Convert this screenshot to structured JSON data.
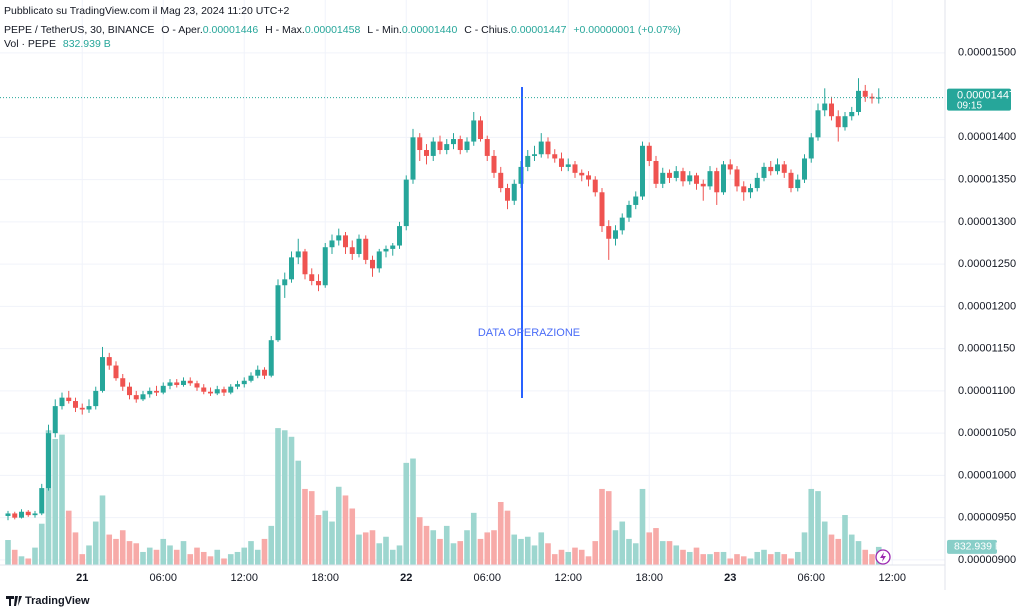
{
  "header": {
    "published": "Pubblicato su TradingView.com il Mag 23, 2024 11:20 UTC+2",
    "symbol": "PEPE / TetherUS, 30, BINANCE",
    "ohlc": [
      {
        "label": "O - Aper.",
        "value": "0.00001446"
      },
      {
        "label": "H - Max.",
        "value": "0.00001458"
      },
      {
        "label": "L - Min.",
        "value": "0.00001440"
      },
      {
        "label": "C - Chius.",
        "value": "0.00001447"
      }
    ],
    "change": "+0.00000001 (+0.07%)",
    "volume_title": "Vol · PEPE",
    "volume_label": "832.939 B",
    "countdown": "09:15",
    "annotation": "DATA OPERAZIONE",
    "brand": "TradingView"
  },
  "chart_data": {
    "type": "candlestick",
    "up_color": "#26a69a",
    "down_color": "#ef5350",
    "volume_up_color": "#9dd6cf",
    "volume_down_color": "#f7aaa8",
    "grid": true,
    "ylim": [
      8.94e-06,
      1.5625e-05
    ],
    "yticks": [
      {
        "value": 1.5e-05,
        "label": "0.00001500"
      },
      {
        "value": 1.4e-05,
        "label": "0.00001400"
      },
      {
        "value": 1.35e-05,
        "label": "0.00001350"
      },
      {
        "value": 1.3e-05,
        "label": "0.00001300"
      },
      {
        "value": 1.25e-05,
        "label": "0.00001250"
      },
      {
        "value": 1.2e-05,
        "label": "0.00001200"
      },
      {
        "value": 1.15e-05,
        "label": "0.00001150"
      },
      {
        "value": 1.1e-05,
        "label": "0.00001100"
      },
      {
        "value": 1.05e-05,
        "label": "0.00001050"
      },
      {
        "value": 1e-05,
        "label": "0.00001000"
      },
      {
        "value": 9.5e-06,
        "label": "0.00000950"
      },
      {
        "value": 9e-06,
        "label": "0.00000900"
      }
    ],
    "xlim": [
      -1.185,
      138.815
    ],
    "xticks": [
      {
        "value": 11,
        "label": "21"
      },
      {
        "value": 23,
        "label": "06:00"
      },
      {
        "value": 35,
        "label": "12:00"
      },
      {
        "value": 47,
        "label": "18:00"
      },
      {
        "value": 59,
        "label": "22"
      },
      {
        "value": 71,
        "label": "06:00"
      },
      {
        "value": 83,
        "label": "12:00"
      },
      {
        "value": 95,
        "label": "18:00"
      },
      {
        "value": 107,
        "label": "23"
      },
      {
        "value": 119,
        "label": "06:00"
      },
      {
        "value": 131,
        "label": "12:00"
      }
    ],
    "volume_lim": [
      0,
      26000
    ],
    "candles": [
      [
        9.52e-06,
        9.58e-06,
        9.47e-06,
        9.55e-06
      ],
      [
        9.55e-06,
        9.57e-06,
        9.48e-06,
        9.5e-06
      ],
      [
        9.5e-06,
        9.6e-06,
        9.49e-06,
        9.57e-06
      ],
      [
        9.57e-06,
        9.59e-06,
        9.51e-06,
        9.53e-06
      ],
      [
        9.53e-06,
        9.58e-06,
        9.5e-06,
        9.55e-06
      ],
      [
        9.55e-06,
        9.9e-06,
        9.53e-06,
        9.85e-06
      ],
      [
        9.85e-06,
        1.06e-05,
        9.82e-06,
        1.05e-05
      ],
      [
        1.05e-05,
        1.09e-05,
        1.045e-05,
        1.082e-05
      ],
      [
        1.082e-05,
        1.098e-05,
        1.078e-05,
        1.092e-05
      ],
      [
        1.092e-05,
        1.1e-05,
        1.085e-05,
        1.088e-05
      ],
      [
        1.088e-05,
        1.092e-05,
        1.075e-05,
        1.08e-05
      ],
      [
        1.08e-05,
        1.085e-05,
        1.072e-05,
        1.078e-05
      ],
      [
        1.078e-05,
        1.09e-05,
        1.074e-05,
        1.082e-05
      ],
      [
        1.082e-05,
        1.105e-05,
        1.078e-05,
        1.1e-05
      ],
      [
        1.1e-05,
        1.152e-05,
        1.098e-05,
        1.14e-05
      ],
      [
        1.14e-05,
        1.145e-05,
        1.125e-05,
        1.13e-05
      ],
      [
        1.13e-05,
        1.135e-05,
        1.112e-05,
        1.115e-05
      ],
      [
        1.115e-05,
        1.12e-05,
        1.1e-05,
        1.105e-05
      ],
      [
        1.105e-05,
        1.11e-05,
        1.09e-05,
        1.095e-05
      ],
      [
        1.095e-05,
        1.1e-05,
        1.086e-05,
        1.09e-05
      ],
      [
        1.09e-05,
        1.1e-05,
        1.088e-05,
        1.096e-05
      ],
      [
        1.096e-05,
        1.104e-05,
        1.092e-05,
        1.1e-05
      ],
      [
        1.1e-05,
        1.106e-05,
        1.094e-05,
        1.098e-05
      ],
      [
        1.098e-05,
        1.11e-05,
        1.096e-05,
        1.106e-05
      ],
      [
        1.106e-05,
        1.114e-05,
        1.102e-05,
        1.11e-05
      ],
      [
        1.11e-05,
        1.114e-05,
        1.104e-05,
        1.107e-05
      ],
      [
        1.107e-05,
        1.116e-05,
        1.105e-05,
        1.112e-05
      ],
      [
        1.112e-05,
        1.116e-05,
        1.106e-05,
        1.109e-05
      ],
      [
        1.109e-05,
        1.112e-05,
        1.1e-05,
        1.104e-05
      ],
      [
        1.104e-05,
        1.108e-05,
        1.096e-05,
        1.099e-05
      ],
      [
        1.099e-05,
        1.104e-05,
        1.094e-05,
        1.097e-05
      ],
      [
        1.097e-05,
        1.106e-05,
        1.095e-05,
        1.102e-05
      ],
      [
        1.102e-05,
        1.105e-05,
        1.094e-05,
        1.098e-05
      ],
      [
        1.098e-05,
        1.108e-05,
        1.096e-05,
        1.105e-05
      ],
      [
        1.105e-05,
        1.112e-05,
        1.102e-05,
        1.108e-05
      ],
      [
        1.108e-05,
        1.116e-05,
        1.104e-05,
        1.112e-05
      ],
      [
        1.112e-05,
        1.122e-05,
        1.11e-05,
        1.118e-05
      ],
      [
        1.118e-05,
        1.13e-05,
        1.115e-05,
        1.125e-05
      ],
      [
        1.125e-05,
        1.128e-05,
        1.114e-05,
        1.118e-05
      ],
      [
        1.118e-05,
        1.165e-05,
        1.116e-05,
        1.16e-05
      ],
      [
        1.16e-05,
        1.232e-05,
        1.158e-05,
        1.225e-05
      ],
      [
        1.225e-05,
        1.24e-05,
        1.21e-05,
        1.232e-05
      ],
      [
        1.232e-05,
        1.265e-05,
        1.228e-05,
        1.258e-05
      ],
      [
        1.258e-05,
        1.28e-05,
        1.25e-05,
        1.265e-05
      ],
      [
        1.265e-05,
        1.268e-05,
        1.232e-05,
        1.238e-05
      ],
      [
        1.238e-05,
        1.245e-05,
        1.225e-05,
        1.23e-05
      ],
      [
        1.23e-05,
        1.238e-05,
        1.218e-05,
        1.225e-05
      ],
      [
        1.225e-05,
        1.275e-05,
        1.222e-05,
        1.27e-05
      ],
      [
        1.27e-05,
        1.285e-05,
        1.262e-05,
        1.278e-05
      ],
      [
        1.278e-05,
        1.292e-05,
        1.272e-05,
        1.284e-05
      ],
      [
        1.284e-05,
        1.288e-05,
        1.262e-05,
        1.27e-05
      ],
      [
        1.27e-05,
        1.278e-05,
        1.255e-05,
        1.262e-05
      ],
      [
        1.262e-05,
        1.285e-05,
        1.258e-05,
        1.28e-05
      ],
      [
        1.28e-05,
        1.284e-05,
        1.25e-05,
        1.255e-05
      ],
      [
        1.255e-05,
        1.26e-05,
        1.235e-05,
        1.245e-05
      ],
      [
        1.245e-05,
        1.268e-05,
        1.24e-05,
        1.265e-05
      ],
      [
        1.265e-05,
        1.272e-05,
        1.258e-05,
        1.268e-05
      ],
      [
        1.268e-05,
        1.275e-05,
        1.26e-05,
        1.272e-05
      ],
      [
        1.272e-05,
        1.3e-05,
        1.268e-05,
        1.295e-05
      ],
      [
        1.295e-05,
        1.355e-05,
        1.29e-05,
        1.35e-05
      ],
      [
        1.35e-05,
        1.41e-05,
        1.345e-05,
        1.4e-05
      ],
      [
        1.4e-05,
        1.405e-05,
        1.372e-05,
        1.385e-05
      ],
      [
        1.385e-05,
        1.392e-05,
        1.368e-05,
        1.378e-05
      ],
      [
        1.378e-05,
        1.4e-05,
        1.372e-05,
        1.395e-05
      ],
      [
        1.395e-05,
        1.402e-05,
        1.38e-05,
        1.385e-05
      ],
      [
        1.385e-05,
        1.398e-05,
        1.38e-05,
        1.392e-05
      ],
      [
        1.392e-05,
        1.405e-05,
        1.386e-05,
        1.398e-05
      ],
      [
        1.398e-05,
        1.402e-05,
        1.38e-05,
        1.385e-05
      ],
      [
        1.385e-05,
        1.4e-05,
        1.382e-05,
        1.395e-05
      ],
      [
        1.395e-05,
        1.43e-05,
        1.39e-05,
        1.42e-05
      ],
      [
        1.42e-05,
        1.425e-05,
        1.395e-05,
        1.398e-05
      ],
      [
        1.398e-05,
        1.402e-05,
        1.372e-05,
        1.378e-05
      ],
      [
        1.378e-05,
        1.385e-05,
        1.352e-05,
        1.358e-05
      ],
      [
        1.358e-05,
        1.365e-05,
        1.335e-05,
        1.34e-05
      ],
      [
        1.34e-05,
        1.345e-05,
        1.315e-05,
        1.325e-05
      ],
      [
        1.325e-05,
        1.35e-05,
        1.32e-05,
        1.345e-05
      ],
      [
        1.345e-05,
        1.372e-05,
        1.34e-05,
        1.365e-05
      ],
      [
        1.365e-05,
        1.385e-05,
        1.36e-05,
        1.378e-05
      ],
      [
        1.378e-05,
        1.39e-05,
        1.372e-05,
        1.38e-05
      ],
      [
        1.38e-05,
        1.405e-05,
        1.376e-05,
        1.395e-05
      ],
      [
        1.395e-05,
        1.4e-05,
        1.375e-05,
        1.38e-05
      ],
      [
        1.38e-05,
        1.386e-05,
        1.37e-05,
        1.375e-05
      ],
      [
        1.375e-05,
        1.382e-05,
        1.36e-05,
        1.365e-05
      ],
      [
        1.365e-05,
        1.375e-05,
        1.36e-05,
        1.368e-05
      ],
      [
        1.368e-05,
        1.372e-05,
        1.352e-05,
        1.358e-05
      ],
      [
        1.358e-05,
        1.362e-05,
        1.348e-05,
        1.355e-05
      ],
      [
        1.355e-05,
        1.36e-05,
        1.342e-05,
        1.35e-05
      ],
      [
        1.35e-05,
        1.354e-05,
        1.33e-05,
        1.335e-05
      ],
      [
        1.335e-05,
        1.34e-05,
        1.288e-05,
        1.295e-05
      ],
      [
        1.295e-05,
        1.302e-05,
        1.255e-05,
        1.28e-05
      ],
      [
        1.28e-05,
        1.296e-05,
        1.272e-05,
        1.29e-05
      ],
      [
        1.29e-05,
        1.31e-05,
        1.285e-05,
        1.305e-05
      ],
      [
        1.305e-05,
        1.325e-05,
        1.3e-05,
        1.32e-05
      ],
      [
        1.32e-05,
        1.336e-05,
        1.315e-05,
        1.33e-05
      ],
      [
        1.33e-05,
        1.395e-05,
        1.326e-05,
        1.39e-05
      ],
      [
        1.39e-05,
        1.394e-05,
        1.366e-05,
        1.372e-05
      ],
      [
        1.372e-05,
        1.378e-05,
        1.34e-05,
        1.345e-05
      ],
      [
        1.345e-05,
        1.364e-05,
        1.34e-05,
        1.358e-05
      ],
      [
        1.358e-05,
        1.362e-05,
        1.346e-05,
        1.352e-05
      ],
      [
        1.352e-05,
        1.366e-05,
        1.348e-05,
        1.36e-05
      ],
      [
        1.36e-05,
        1.364e-05,
        1.342e-05,
        1.348e-05
      ],
      [
        1.348e-05,
        1.36e-05,
        1.344e-05,
        1.355e-05
      ],
      [
        1.355e-05,
        1.358e-05,
        1.338e-05,
        1.345e-05
      ],
      [
        1.345e-05,
        1.35e-05,
        1.325e-05,
        1.342e-05
      ],
      [
        1.342e-05,
        1.366e-05,
        1.338e-05,
        1.36e-05
      ],
      [
        1.36e-05,
        1.364e-05,
        1.32e-05,
        1.335e-05
      ],
      [
        1.335e-05,
        1.372e-05,
        1.332e-05,
        1.368e-05
      ],
      [
        1.368e-05,
        1.374e-05,
        1.356e-05,
        1.362e-05
      ],
      [
        1.362e-05,
        1.366e-05,
        1.336e-05,
        1.342e-05
      ],
      [
        1.342e-05,
        1.348e-05,
        1.325e-05,
        1.335e-05
      ],
      [
        1.335e-05,
        1.345e-05,
        1.328e-05,
        1.34e-05
      ],
      [
        1.34e-05,
        1.358e-05,
        1.336e-05,
        1.352e-05
      ],
      [
        1.352e-05,
        1.37e-05,
        1.348e-05,
        1.365e-05
      ],
      [
        1.365e-05,
        1.372e-05,
        1.355e-05,
        1.36e-05
      ],
      [
        1.36e-05,
        1.375e-05,
        1.356e-05,
        1.368e-05
      ],
      [
        1.368e-05,
        1.372e-05,
        1.352e-05,
        1.358e-05
      ],
      [
        1.358e-05,
        1.362e-05,
        1.335e-05,
        1.34e-05
      ],
      [
        1.34e-05,
        1.356e-05,
        1.336e-05,
        1.35e-05
      ],
      [
        1.35e-05,
        1.38e-05,
        1.346e-05,
        1.375e-05
      ],
      [
        1.375e-05,
        1.405e-05,
        1.37e-05,
        1.4e-05
      ],
      [
        1.4e-05,
        1.44e-05,
        1.396e-05,
        1.432e-05
      ],
      [
        1.432e-05,
        1.458e-05,
        1.425e-05,
        1.44e-05
      ],
      [
        1.44e-05,
        1.448e-05,
        1.42e-05,
        1.425e-05
      ],
      [
        1.425e-05,
        1.432e-05,
        1.395e-05,
        1.412e-05
      ],
      [
        1.412e-05,
        1.43e-05,
        1.408e-05,
        1.425e-05
      ],
      [
        1.425e-05,
        1.436e-05,
        1.42e-05,
        1.43e-05
      ],
      [
        1.43e-05,
        1.47e-05,
        1.426e-05,
        1.455e-05
      ],
      [
        1.455e-05,
        1.462e-05,
        1.442e-05,
        1.448e-05
      ],
      [
        1.448e-05,
        1.452e-05,
        1.44e-05,
        1.446e-05
      ],
      [
        1.446e-05,
        1.458e-05,
        1.44e-05,
        1.447e-05
      ]
    ],
    "volumes": [
      1150,
      700,
      400,
      300,
      800,
      1900,
      6200,
      5800,
      6000,
      2500,
      1500,
      500,
      900,
      2000,
      3200,
      1400,
      1200,
      1600,
      1100,
      1000,
      600,
      800,
      700,
      1200,
      900,
      700,
      1100,
      500,
      800,
      600,
      400,
      700,
      300,
      500,
      600,
      800,
      1100,
      700,
      1200,
      1800,
      6300,
      6200,
      5900,
      4800,
      3500,
      3400,
      2300,
      2500,
      2000,
      3600,
      3200,
      2600,
      1400,
      1500,
      1600,
      1000,
      1300,
      700,
      900,
      4700,
      4900,
      2200,
      1800,
      1600,
      1200,
      1800,
      1000,
      1100,
      1600,
      2400,
      1200,
      1500,
      1600,
      2900,
      2500,
      1400,
      1200,
      1300,
      900,
      1500,
      1000,
      500,
      700,
      600,
      800,
      700,
      400,
      1100,
      3500,
      3400,
      1600,
      2000,
      1200,
      1000,
      3500,
      1500,
      1700,
      1100,
      1100,
      900,
      700,
      600,
      800,
      500,
      500,
      600,
      600,
      300,
      500,
      400,
      300,
      600,
      700,
      500,
      600,
      500,
      300,
      600,
      1500,
      3500,
      3400,
      2000,
      1400,
      1200,
      2300,
      1400,
      1100,
      700,
      500,
      832.939
    ]
  }
}
